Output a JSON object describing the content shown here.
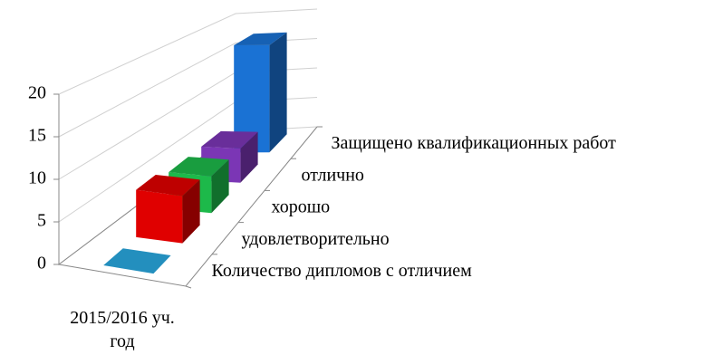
{
  "chart_data": {
    "type": "bar3d",
    "categories": [
      "2015/2016 уч. год"
    ],
    "series": [
      {
        "name": "Количество дипломов с отличием",
        "color": "#29a8e0",
        "values": [
          0
        ]
      },
      {
        "name": "удовлетворительно",
        "color": "#e00000",
        "values": [
          6
        ]
      },
      {
        "name": "хорошо",
        "color": "#1db94a",
        "values": [
          5
        ]
      },
      {
        "name": "отлично",
        "color": "#7b36b5",
        "values": [
          5
        ]
      },
      {
        "name": "Защищено квалификационных работ",
        "color": "#1a72d4",
        "values": [
          17
        ]
      }
    ],
    "ylim": [
      0,
      20
    ],
    "yticks": [
      0,
      5,
      10,
      15,
      20
    ],
    "grid": true
  }
}
